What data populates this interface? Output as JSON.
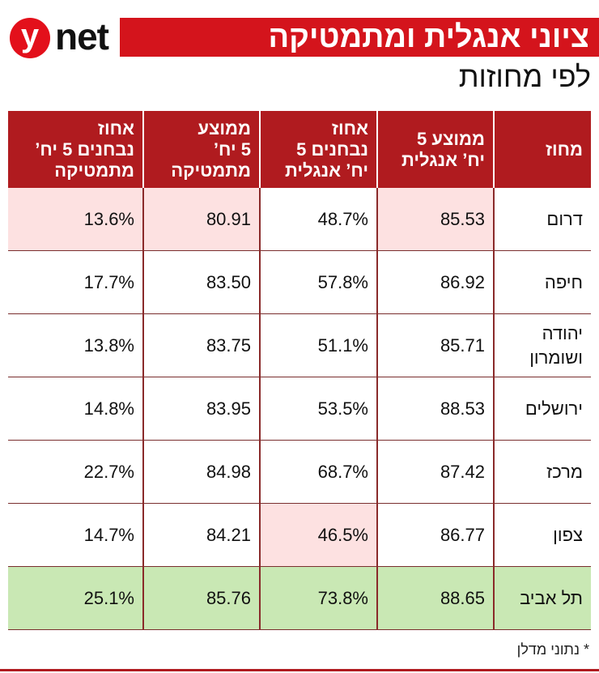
{
  "logo": {
    "mark": "y",
    "text": "net"
  },
  "header": {
    "title": "ציוני אנגלית ומתמטיקה",
    "subtitle": "לפי מחוזות"
  },
  "table": {
    "columns": [
      "מחוז",
      "ממוצע 5\nיח’ אנגלית",
      "אחוז\nנבחנים 5\nיח’ אנגלית",
      "ממוצע\n5 יח’\nמתמטיקה",
      "אחוז\nנבחנים 5 יח’\nמתמטיקה"
    ],
    "rows": [
      [
        "דרום",
        "85.53",
        "48.7%",
        "80.91",
        "13.6%"
      ],
      [
        "חיפה",
        "86.92",
        "57.8%",
        "83.50",
        "17.7%"
      ],
      [
        "יהודה\nושומרון",
        "85.71",
        "51.1%",
        "83.75",
        "13.8%"
      ],
      [
        "ירושלים",
        "88.53",
        "53.5%",
        "83.95",
        "14.8%"
      ],
      [
        "מרכז",
        "87.42",
        "68.7%",
        "84.98",
        "22.7%"
      ],
      [
        "צפון",
        "86.77",
        "46.5%",
        "84.21",
        "14.7%"
      ],
      [
        "תל אביב",
        "88.65",
        "73.8%",
        "85.76",
        "25.1%"
      ]
    ]
  },
  "footnote": "* נתוני מדלן"
}
